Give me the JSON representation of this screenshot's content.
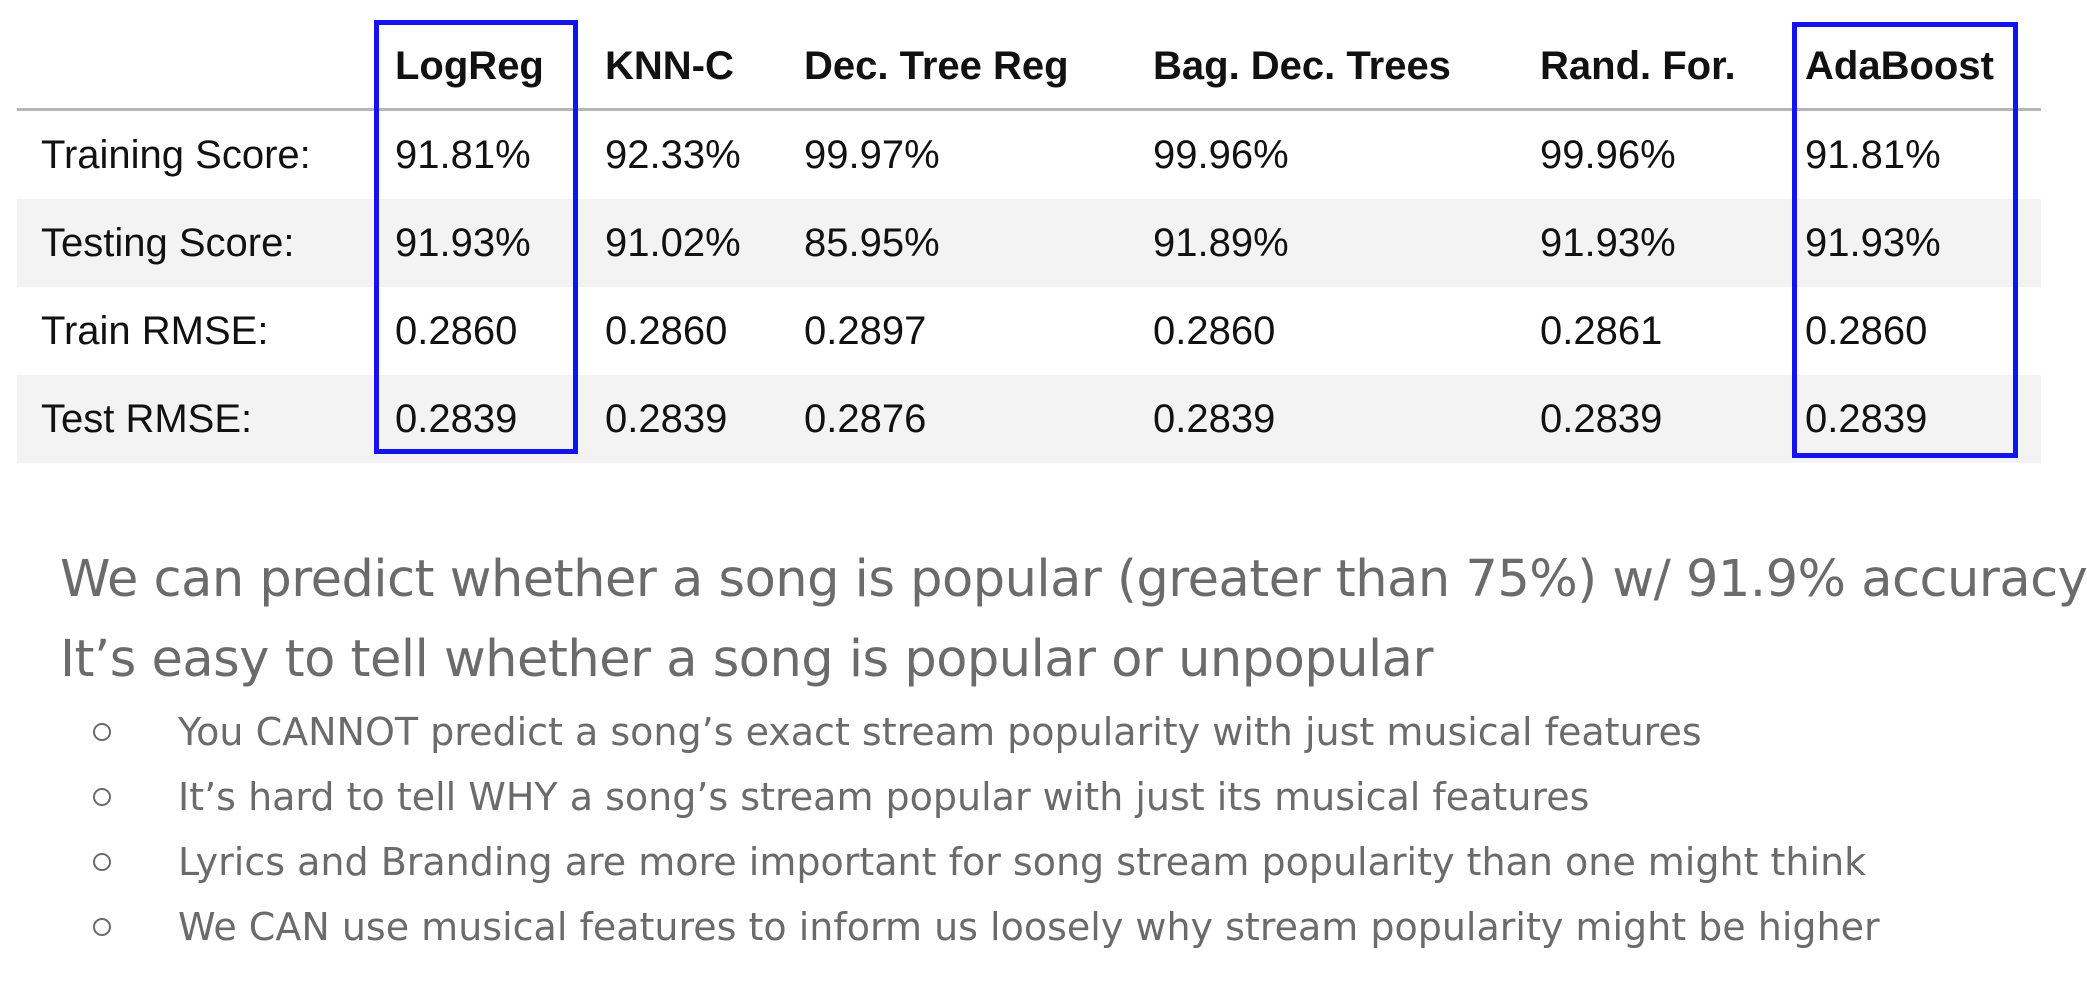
{
  "table": {
    "columns": [
      "LogReg",
      "KNN-C",
      "Dec. Tree Reg",
      "Bag. Dec. Trees",
      "Rand. For.",
      "AdaBoost"
    ],
    "rows": [
      {
        "label": "Training Score:",
        "values": [
          "91.81%",
          "92.33%",
          "99.97%",
          "99.96%",
          "99.96%",
          "91.81%"
        ]
      },
      {
        "label": "Testing Score:",
        "values": [
          "91.93%",
          "91.02%",
          "85.95%",
          "91.89%",
          "91.93%",
          "91.93%"
        ]
      },
      {
        "label": "Train RMSE:",
        "values": [
          "0.2860",
          "0.2860",
          "0.2897",
          "0.2860",
          "0.2861",
          "0.2860"
        ]
      },
      {
        "label": "Test RMSE:",
        "values": [
          "0.2839",
          "0.2839",
          "0.2876",
          "0.2839",
          "0.2839",
          "0.2839"
        ]
      }
    ],
    "highlighted_columns": [
      "LogReg",
      "AdaBoost"
    ],
    "highlight_color": "#1313ee"
  },
  "bullets": {
    "main": [
      "We can predict whether a song is popular (greater than 75%) w/ 91.9% accuracy",
      "It’s easy to tell whether a song is popular or unpopular"
    ],
    "sub": [
      "You CANNOT predict a song’s exact stream popularity with just musical features",
      "It’s hard to tell WHY a song’s stream popular with just its musical features",
      "Lyrics and Branding are more important for song stream popularity than one might think",
      "We CAN use musical features to inform us loosely why stream popularity might be higher"
    ],
    "sub_marker_icon": "hollow-circle-bullet-icon"
  }
}
